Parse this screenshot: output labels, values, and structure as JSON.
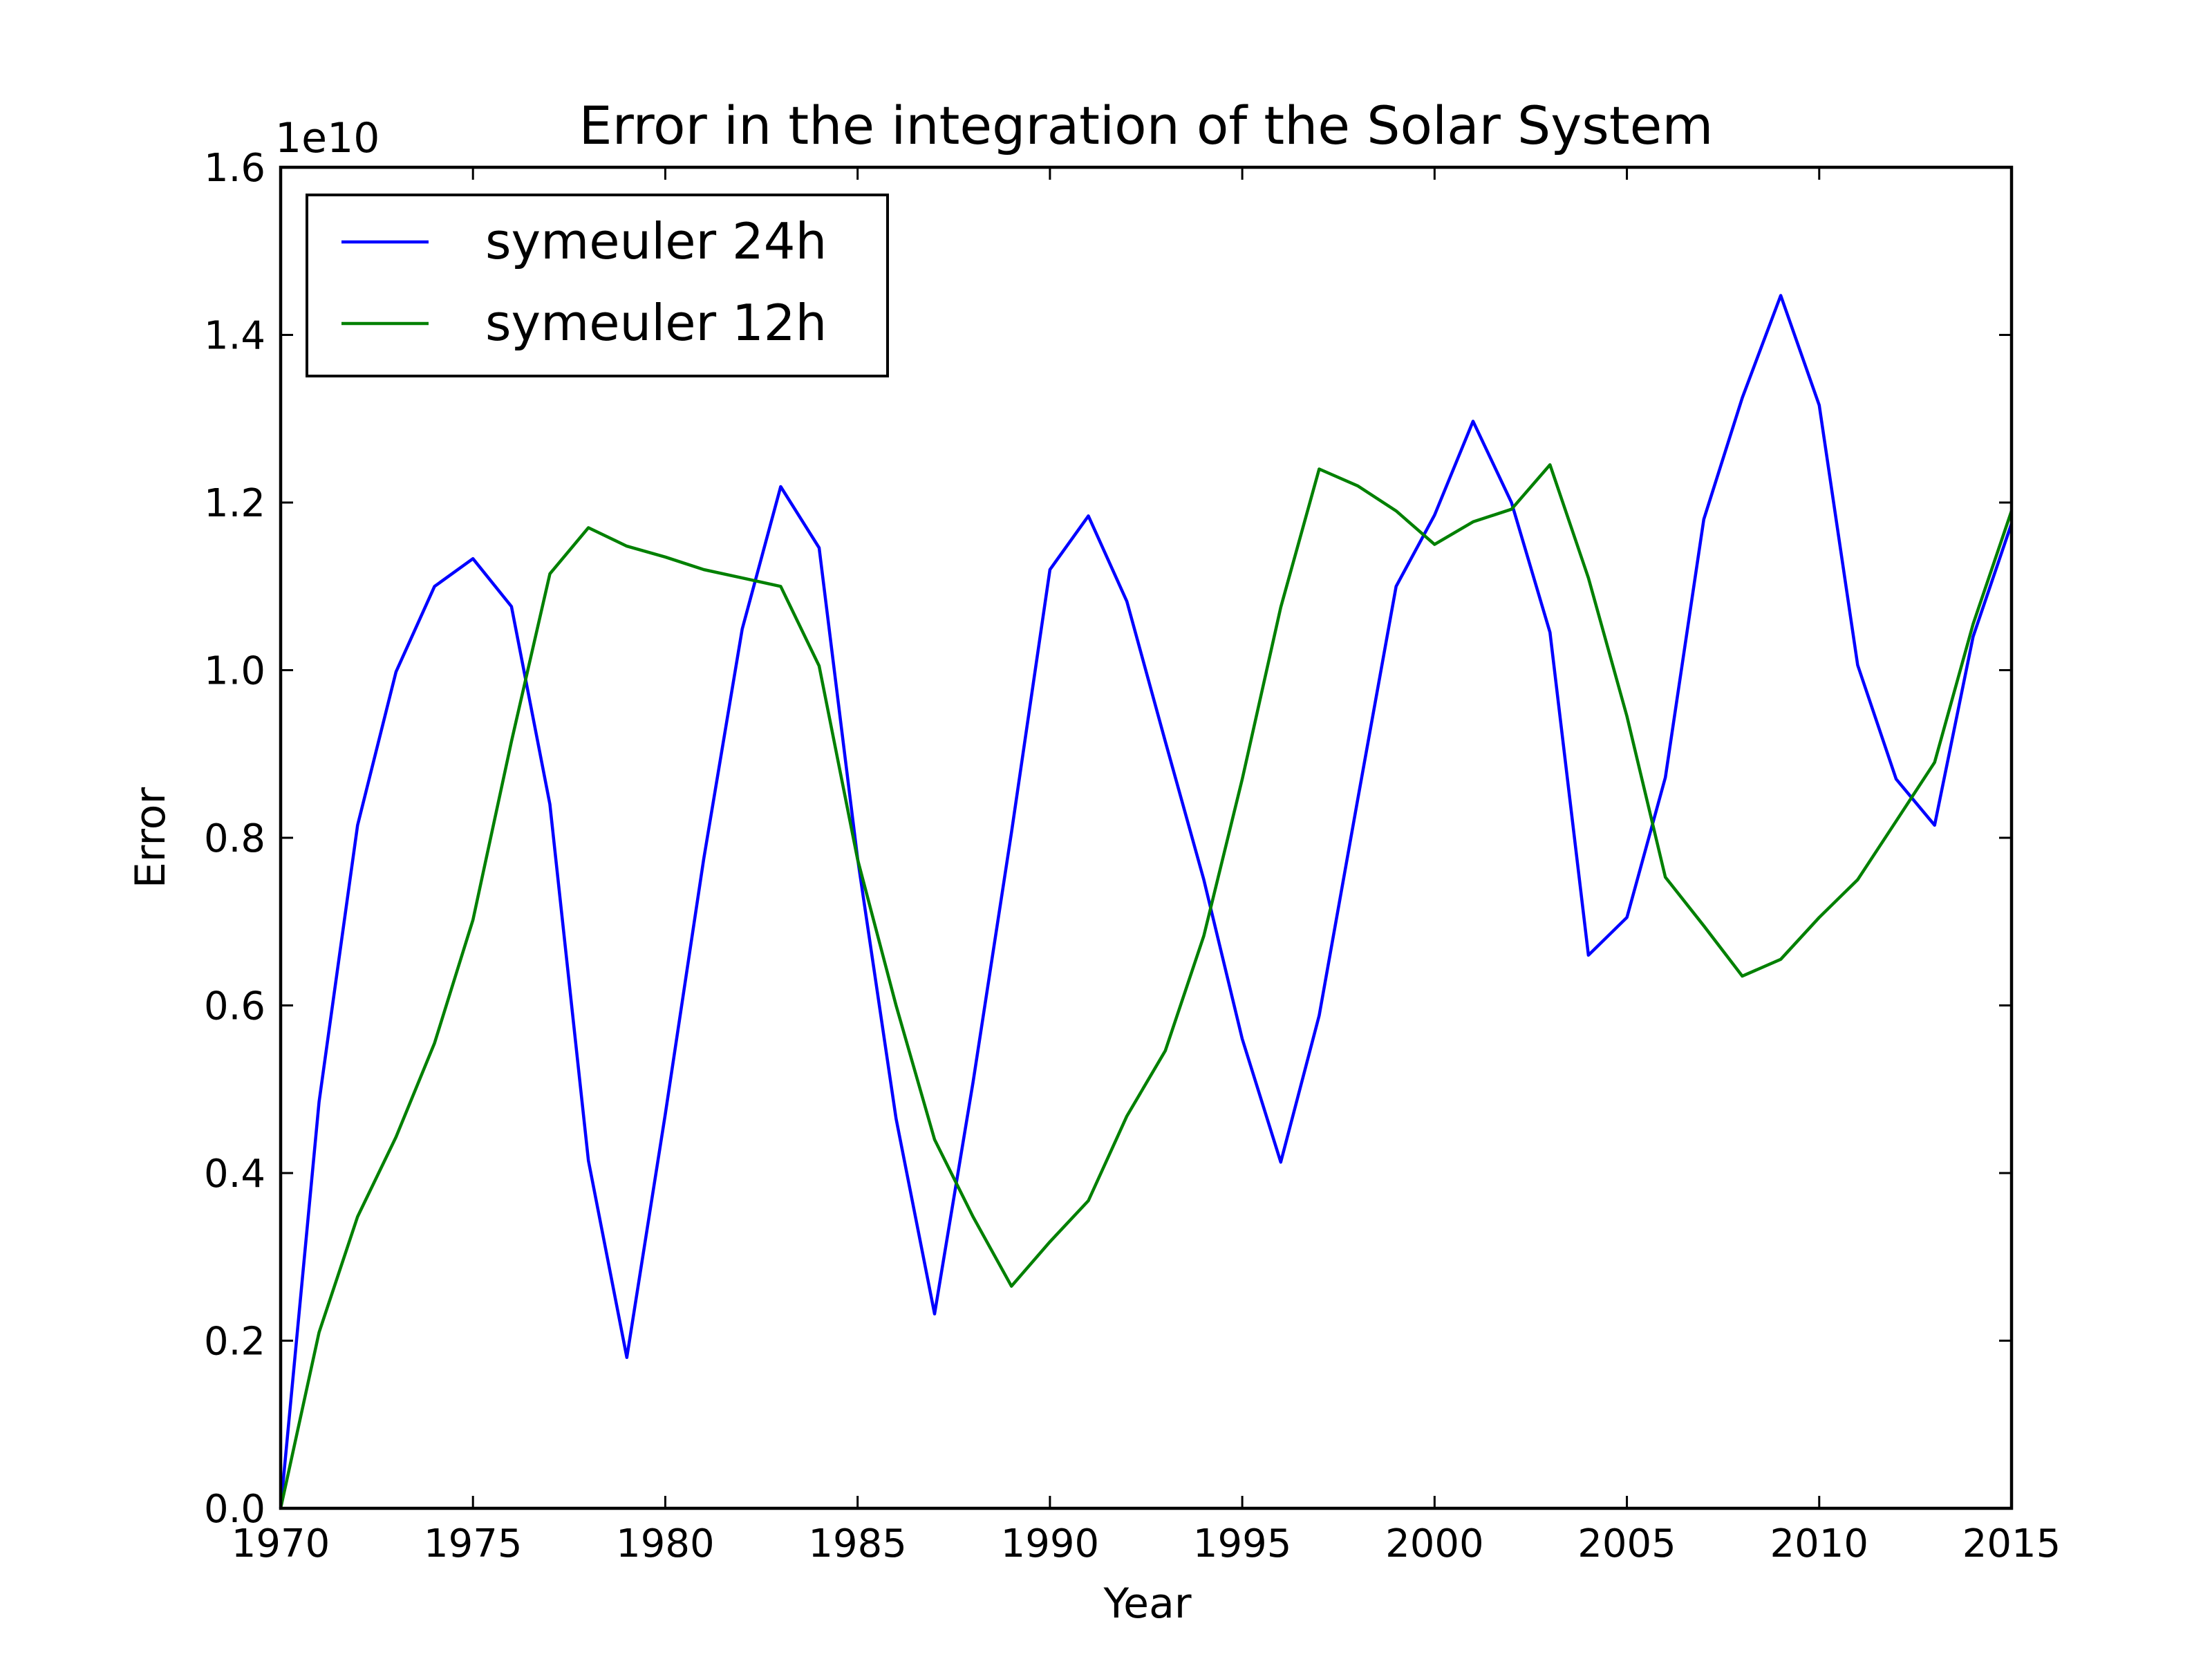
{
  "chart_data": {
    "type": "line",
    "title": "Error in the integration of the Solar System",
    "xlabel": "Year",
    "ylabel": "Error",
    "y_offset_label": "1e10",
    "xlim": [
      1970,
      2015
    ],
    "ylim": [
      0,
      1.6
    ],
    "y_scale_factor": 10000000000.0,
    "x_ticks": [
      1970,
      1975,
      1980,
      1985,
      1990,
      1995,
      2000,
      2005,
      2010,
      2015
    ],
    "x_tick_labels": [
      "1970",
      "1975",
      "1980",
      "1985",
      "1990",
      "1995",
      "2000",
      "2005",
      "2010",
      "2015"
    ],
    "y_ticks": [
      0,
      0.2,
      0.4,
      0.6,
      0.8,
      1.0,
      1.2,
      1.4,
      1.6
    ],
    "y_tick_labels": [
      "0.0",
      "0.2",
      "0.4",
      "0.6",
      "0.8",
      "1.0",
      "1.2",
      "1.4",
      "1.6"
    ],
    "grid": false,
    "legend_position": "top-left",
    "x": [
      1970,
      1971,
      1972,
      1973,
      1974,
      1975,
      1976,
      1977,
      1978,
      1979,
      1980,
      1981,
      1982,
      1983,
      1984,
      1985,
      1986,
      1987,
      1988,
      1989,
      1990,
      1991,
      1992,
      1993,
      1994,
      1995,
      1996,
      1997,
      1998,
      1999,
      2000,
      2001,
      2002,
      2003,
      2004,
      2005,
      2006,
      2007,
      2008,
      2009,
      2010,
      2011,
      2012,
      2013,
      2014,
      2015
    ],
    "series": [
      {
        "name": "symeuler 24h",
        "color": "#0000ff",
        "values": [
          0.0,
          0.485,
          0.815,
          0.998,
          1.1,
          1.133,
          1.076,
          0.84,
          0.415,
          0.18,
          0.47,
          0.775,
          1.049,
          1.219,
          1.146,
          0.775,
          0.465,
          0.232,
          0.508,
          0.806,
          1.12,
          1.184,
          1.082,
          0.915,
          0.75,
          0.56,
          0.413,
          0.588,
          0.845,
          1.1,
          1.185,
          1.297,
          1.2,
          1.045,
          0.66,
          0.705,
          0.872,
          1.18,
          1.325,
          1.447,
          1.316,
          1.006,
          0.87,
          0.815,
          1.04,
          1.175
        ]
      },
      {
        "name": "symeuler 12h",
        "color": "#008000",
        "values": [
          0.0,
          0.21,
          0.348,
          0.443,
          0.555,
          0.702,
          0.915,
          1.115,
          1.17,
          1.148,
          1.135,
          1.12,
          1.11,
          1.1,
          1.005,
          0.774,
          0.6,
          0.44,
          0.348,
          0.265,
          0.318,
          0.367,
          0.468,
          0.546,
          0.683,
          0.87,
          1.075,
          1.24,
          1.22,
          1.19,
          1.15,
          1.177,
          1.192,
          1.245,
          1.11,
          0.945,
          0.753,
          0.695,
          0.635,
          0.655,
          0.705,
          0.75,
          0.82,
          0.89,
          1.055,
          1.19
        ]
      }
    ]
  }
}
